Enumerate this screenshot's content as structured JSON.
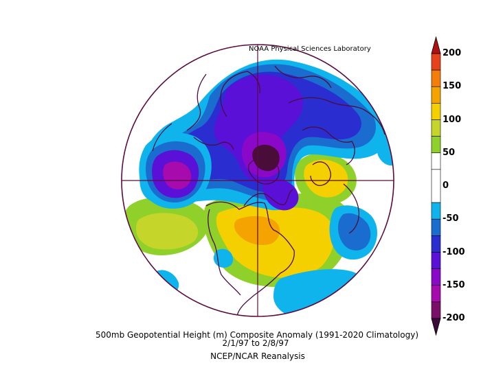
{
  "credit": "NOAA Physical Sciences Laboratory",
  "caption": {
    "title": "500mb Geopotential Height (m) Composite Anomaly (1991-2020 Climatology)",
    "dates": "2/1/97   to 2/8/97",
    "source": "NCEP/NCAR Reanalysis"
  },
  "projection": "north-polar-stereographic",
  "variable": "500mb geopotential height anomaly",
  "units": "m",
  "colorbar": {
    "ticks": [
      "200",
      "150",
      "100",
      "50",
      "0",
      "-50",
      "-100",
      "-150",
      "-200"
    ],
    "levels": [
      {
        "range": [
          175,
          200
        ],
        "color": "#e8421c"
      },
      {
        "range": [
          150,
          175
        ],
        "color": "#f57d0a"
      },
      {
        "range": [
          125,
          150
        ],
        "color": "#f5a300"
      },
      {
        "range": [
          100,
          125
        ],
        "color": "#f5d000"
      },
      {
        "range": [
          75,
          100
        ],
        "color": "#c6d52a"
      },
      {
        "range": [
          50,
          75
        ],
        "color": "#8fd02a"
      },
      {
        "range": [
          25,
          50
        ],
        "color": "#ffffff"
      },
      {
        "range": [
          -25,
          25
        ],
        "color": "#ffffff"
      },
      {
        "range": [
          -50,
          -25
        ],
        "color": "#0fb4ec"
      },
      {
        "range": [
          -75,
          -50
        ],
        "color": "#1a6dcf"
      },
      {
        "range": [
          -100,
          -75
        ],
        "color": "#2a2ed0"
      },
      {
        "range": [
          -125,
          -100
        ],
        "color": "#5a10d6"
      },
      {
        "range": [
          -150,
          -125
        ],
        "color": "#8a09c8"
      },
      {
        "range": [
          -175,
          -150
        ],
        "color": "#a70aad"
      },
      {
        "range": [
          -200,
          -175
        ],
        "color": "#7a0f6a"
      }
    ],
    "over_color": "#b01010",
    "under_color": "#3a0a3a"
  },
  "colors": {
    "coast": "#4a0d40",
    "grid": "#5a0a40",
    "neg_light": "#0fb4ec",
    "neg_mid": "#1a6dcf",
    "neg_blue": "#2a2ed0",
    "neg_indigo": "#5a10d6",
    "neg_violet": "#8a09c8",
    "neg_purple": "#a70aad",
    "neg_deep": "#4a0d3a",
    "pos_green": "#8fd02a",
    "pos_lime": "#c6d52a",
    "pos_yellow": "#f5d000",
    "pos_gold": "#f5a300"
  }
}
